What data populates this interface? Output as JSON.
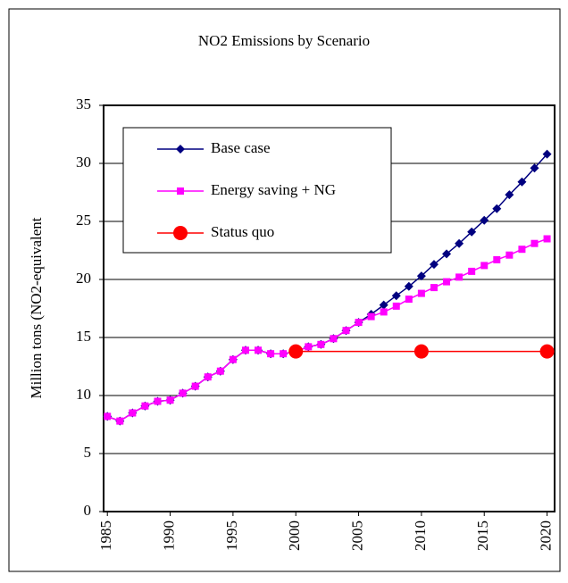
{
  "chart_data": {
    "type": "line",
    "title": "NO2 Emissions by Scenario",
    "ylabel": "Million tons (NO2-equivalent",
    "xlim": [
      1984.7,
      2020.6
    ],
    "xticks": [
      1985,
      1990,
      1995,
      2000,
      2005,
      2010,
      2015,
      2020
    ],
    "ylim": [
      0,
      35
    ],
    "yticks": [
      0,
      5,
      10,
      15,
      20,
      25,
      30,
      35
    ],
    "grid": true,
    "legend": "upper left",
    "series": [
      {
        "name": "Base case",
        "color": "#000080",
        "marker": "diamond",
        "x": [
          1985,
          1986,
          1987,
          1988,
          1989,
          1990,
          1991,
          1992,
          1993,
          1994,
          1995,
          1996,
          1997,
          1998,
          1999,
          2000,
          2001,
          2002,
          2003,
          2004,
          2005,
          2006,
          2007,
          2008,
          2009,
          2010,
          2011,
          2012,
          2013,
          2014,
          2015,
          2016,
          2017,
          2018,
          2019,
          2020
        ],
        "values": [
          8.2,
          7.8,
          8.5,
          9.1,
          9.5,
          9.6,
          10.2,
          10.8,
          11.6,
          12.1,
          13.1,
          13.9,
          13.9,
          13.6,
          13.6,
          13.8,
          14.2,
          14.4,
          14.9,
          15.6,
          16.3,
          17.0,
          17.8,
          18.6,
          19.4,
          20.3,
          21.3,
          22.2,
          23.1,
          24.1,
          25.1,
          26.1,
          27.3,
          28.4,
          29.6,
          30.8
        ]
      },
      {
        "name": "Energy saving + NG",
        "color": "#ff00ff",
        "marker": "square",
        "x": [
          1985,
          1986,
          1987,
          1988,
          1989,
          1990,
          1991,
          1992,
          1993,
          1994,
          1995,
          1996,
          1997,
          1998,
          1999,
          2000,
          2001,
          2002,
          2003,
          2004,
          2005,
          2006,
          2007,
          2008,
          2009,
          2010,
          2011,
          2012,
          2013,
          2014,
          2015,
          2016,
          2017,
          2018,
          2019,
          2020
        ],
        "values": [
          8.2,
          7.8,
          8.5,
          9.1,
          9.5,
          9.6,
          10.2,
          10.8,
          11.6,
          12.1,
          13.1,
          13.9,
          13.9,
          13.6,
          13.6,
          13.8,
          14.2,
          14.4,
          14.9,
          15.6,
          16.3,
          16.8,
          17.2,
          17.7,
          18.3,
          18.8,
          19.3,
          19.8,
          20.2,
          20.7,
          21.2,
          21.7,
          22.1,
          22.6,
          23.1,
          23.5
        ]
      },
      {
        "name": "Status quo",
        "color": "#ff0000",
        "marker": "circle",
        "x": [
          2000,
          2010,
          2020
        ],
        "values": [
          13.8,
          13.8,
          13.8
        ]
      }
    ]
  }
}
